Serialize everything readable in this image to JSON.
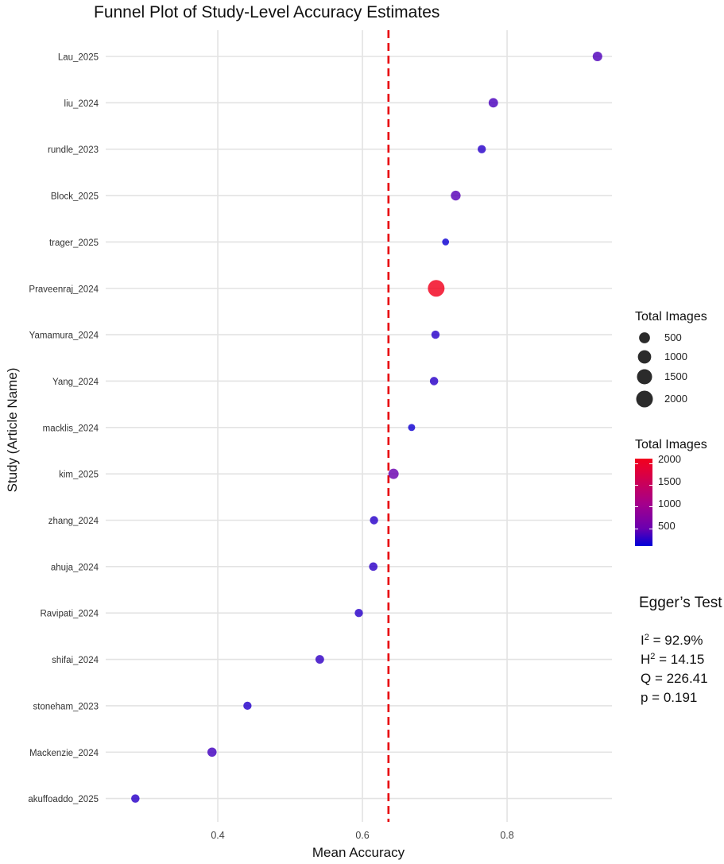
{
  "chart_data": {
    "type": "scatter",
    "title": "Funnel Plot of Study-Level Accuracy Estimates",
    "xlabel": "Mean Accuracy",
    "ylabel": "Study (Article Name)",
    "xlim": [
      0.245,
      0.945
    ],
    "x_ticks": [
      0.4,
      0.6,
      0.8
    ],
    "x_tick_labels": [
      "0.4",
      "0.6",
      "0.8"
    ],
    "reference_line": {
      "x": 0.636,
      "color": "#e8000b",
      "style": "dashed"
    },
    "studies": [
      {
        "name": "Lau_2025",
        "accuracy": 0.925,
        "total_images": 300
      },
      {
        "name": "liu_2024",
        "accuracy": 0.781,
        "total_images": 280
      },
      {
        "name": "rundle_2023",
        "accuracy": 0.765,
        "total_images": 150
      },
      {
        "name": "Block_2025",
        "accuracy": 0.729,
        "total_images": 330
      },
      {
        "name": "trager_2025",
        "accuracy": 0.715,
        "total_images": 50
      },
      {
        "name": "Praveenraj_2024",
        "accuracy": 0.702,
        "total_images": 2000
      },
      {
        "name": "Yamamura_2024",
        "accuracy": 0.701,
        "total_images": 150
      },
      {
        "name": "Yang_2024",
        "accuracy": 0.699,
        "total_images": 160
      },
      {
        "name": "macklis_2024",
        "accuracy": 0.668,
        "total_images": 60
      },
      {
        "name": "kim_2025",
        "accuracy": 0.643,
        "total_images": 400
      },
      {
        "name": "zhang_2024",
        "accuracy": 0.616,
        "total_images": 150
      },
      {
        "name": "ahuja_2024",
        "accuracy": 0.615,
        "total_images": 170
      },
      {
        "name": "Ravipati_2024",
        "accuracy": 0.595,
        "total_images": 150
      },
      {
        "name": "shifai_2024",
        "accuracy": 0.541,
        "total_images": 190
      },
      {
        "name": "stoneham_2023",
        "accuracy": 0.441,
        "total_images": 140
      },
      {
        "name": "Mackenzie_2024",
        "accuracy": 0.392,
        "total_images": 250
      },
      {
        "name": "akuffoaddo_2025",
        "accuracy": 0.286,
        "total_images": 160
      }
    ],
    "size_legend": {
      "title": "Total Images",
      "values": [
        500,
        1000,
        1500,
        2000
      ],
      "labels": [
        "500",
        "1000",
        "1500",
        "2000"
      ]
    },
    "color_legend": {
      "title": "Total Images",
      "min": 0,
      "max": 2000,
      "ticks": [
        500,
        1000,
        1500,
        2000
      ],
      "labels": [
        "500",
        "1000",
        "1500",
        "2000"
      ],
      "low_color": "#0000d8",
      "high_color": "#f2001c"
    },
    "annotation": {
      "title": "Egger’s Test",
      "i2_text": "I",
      "i2_value": " = 92.9%",
      "h2_text": "H",
      "h2_value": " = 14.15",
      "superscript": "2",
      "q_line": "Q = 226.41",
      "p_line": "p = 0.191"
    }
  }
}
